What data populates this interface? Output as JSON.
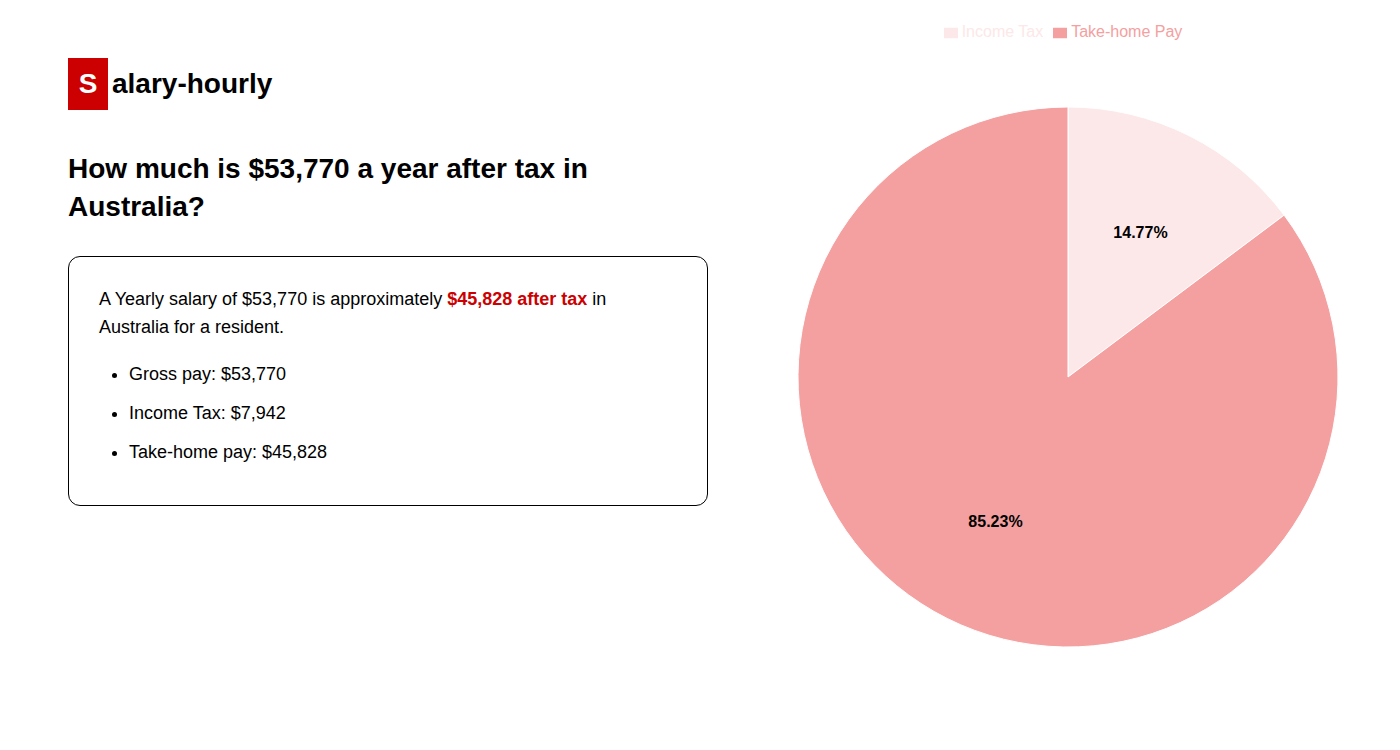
{
  "chart_data": {
    "type": "pie",
    "title": "How much is $53,770 a year after tax in\nAustralia?",
    "categories": [
      "Income Tax",
      "Take-home Pay"
    ],
    "values": [
      14.77,
      85.23
    ],
    "value_labels": [
      "14.77%",
      "85.23%"
    ],
    "colors": [
      "#fce8e8",
      "#f4a0a0"
    ],
    "data_labels": true,
    "legend": "top",
    "annotations": [
      {
        "text": "S",
        "color": "#cc0000"
      },
      {
        "text": "alary-hourly"
      },
      {
        "text": "A Yearly salary of $53,770 is approximately "
      },
      {
        "text": "$45,828 after tax",
        "color": "#cc0000"
      },
      {
        "text": " in"
      },
      {
        "text": "Australia for a resident."
      },
      {
        "text": "Gross pay: $53,770"
      },
      {
        "text": "Income Tax: $7,942"
      },
      {
        "text": "Take-home pay: $45,828"
      }
    ]
  }
}
